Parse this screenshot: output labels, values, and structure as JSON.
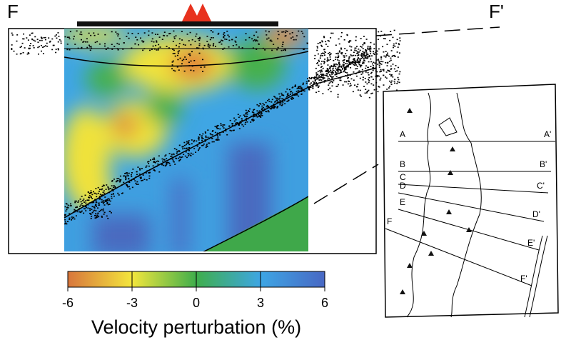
{
  "section": {
    "left_label": "F",
    "right_label": "F'"
  },
  "colorbar": {
    "title": "Velocity perturbation (%)",
    "lim": [
      -6,
      6
    ],
    "ticks": [
      -6,
      -3,
      0,
      3,
      6
    ],
    "colors": [
      "#d8763c",
      "#f3e63c",
      "#3fae4c",
      "#3ea6e4",
      "#4868c4"
    ]
  },
  "map": {
    "profiles": [
      {
        "start": "A",
        "end": "A'"
      },
      {
        "start": "B",
        "end": "B'"
      },
      {
        "start": "C",
        "end": "C'"
      },
      {
        "start": "D",
        "end": "D'"
      },
      {
        "start": "E",
        "end": "E'"
      },
      {
        "start": "F",
        "end": "F'"
      }
    ]
  }
}
